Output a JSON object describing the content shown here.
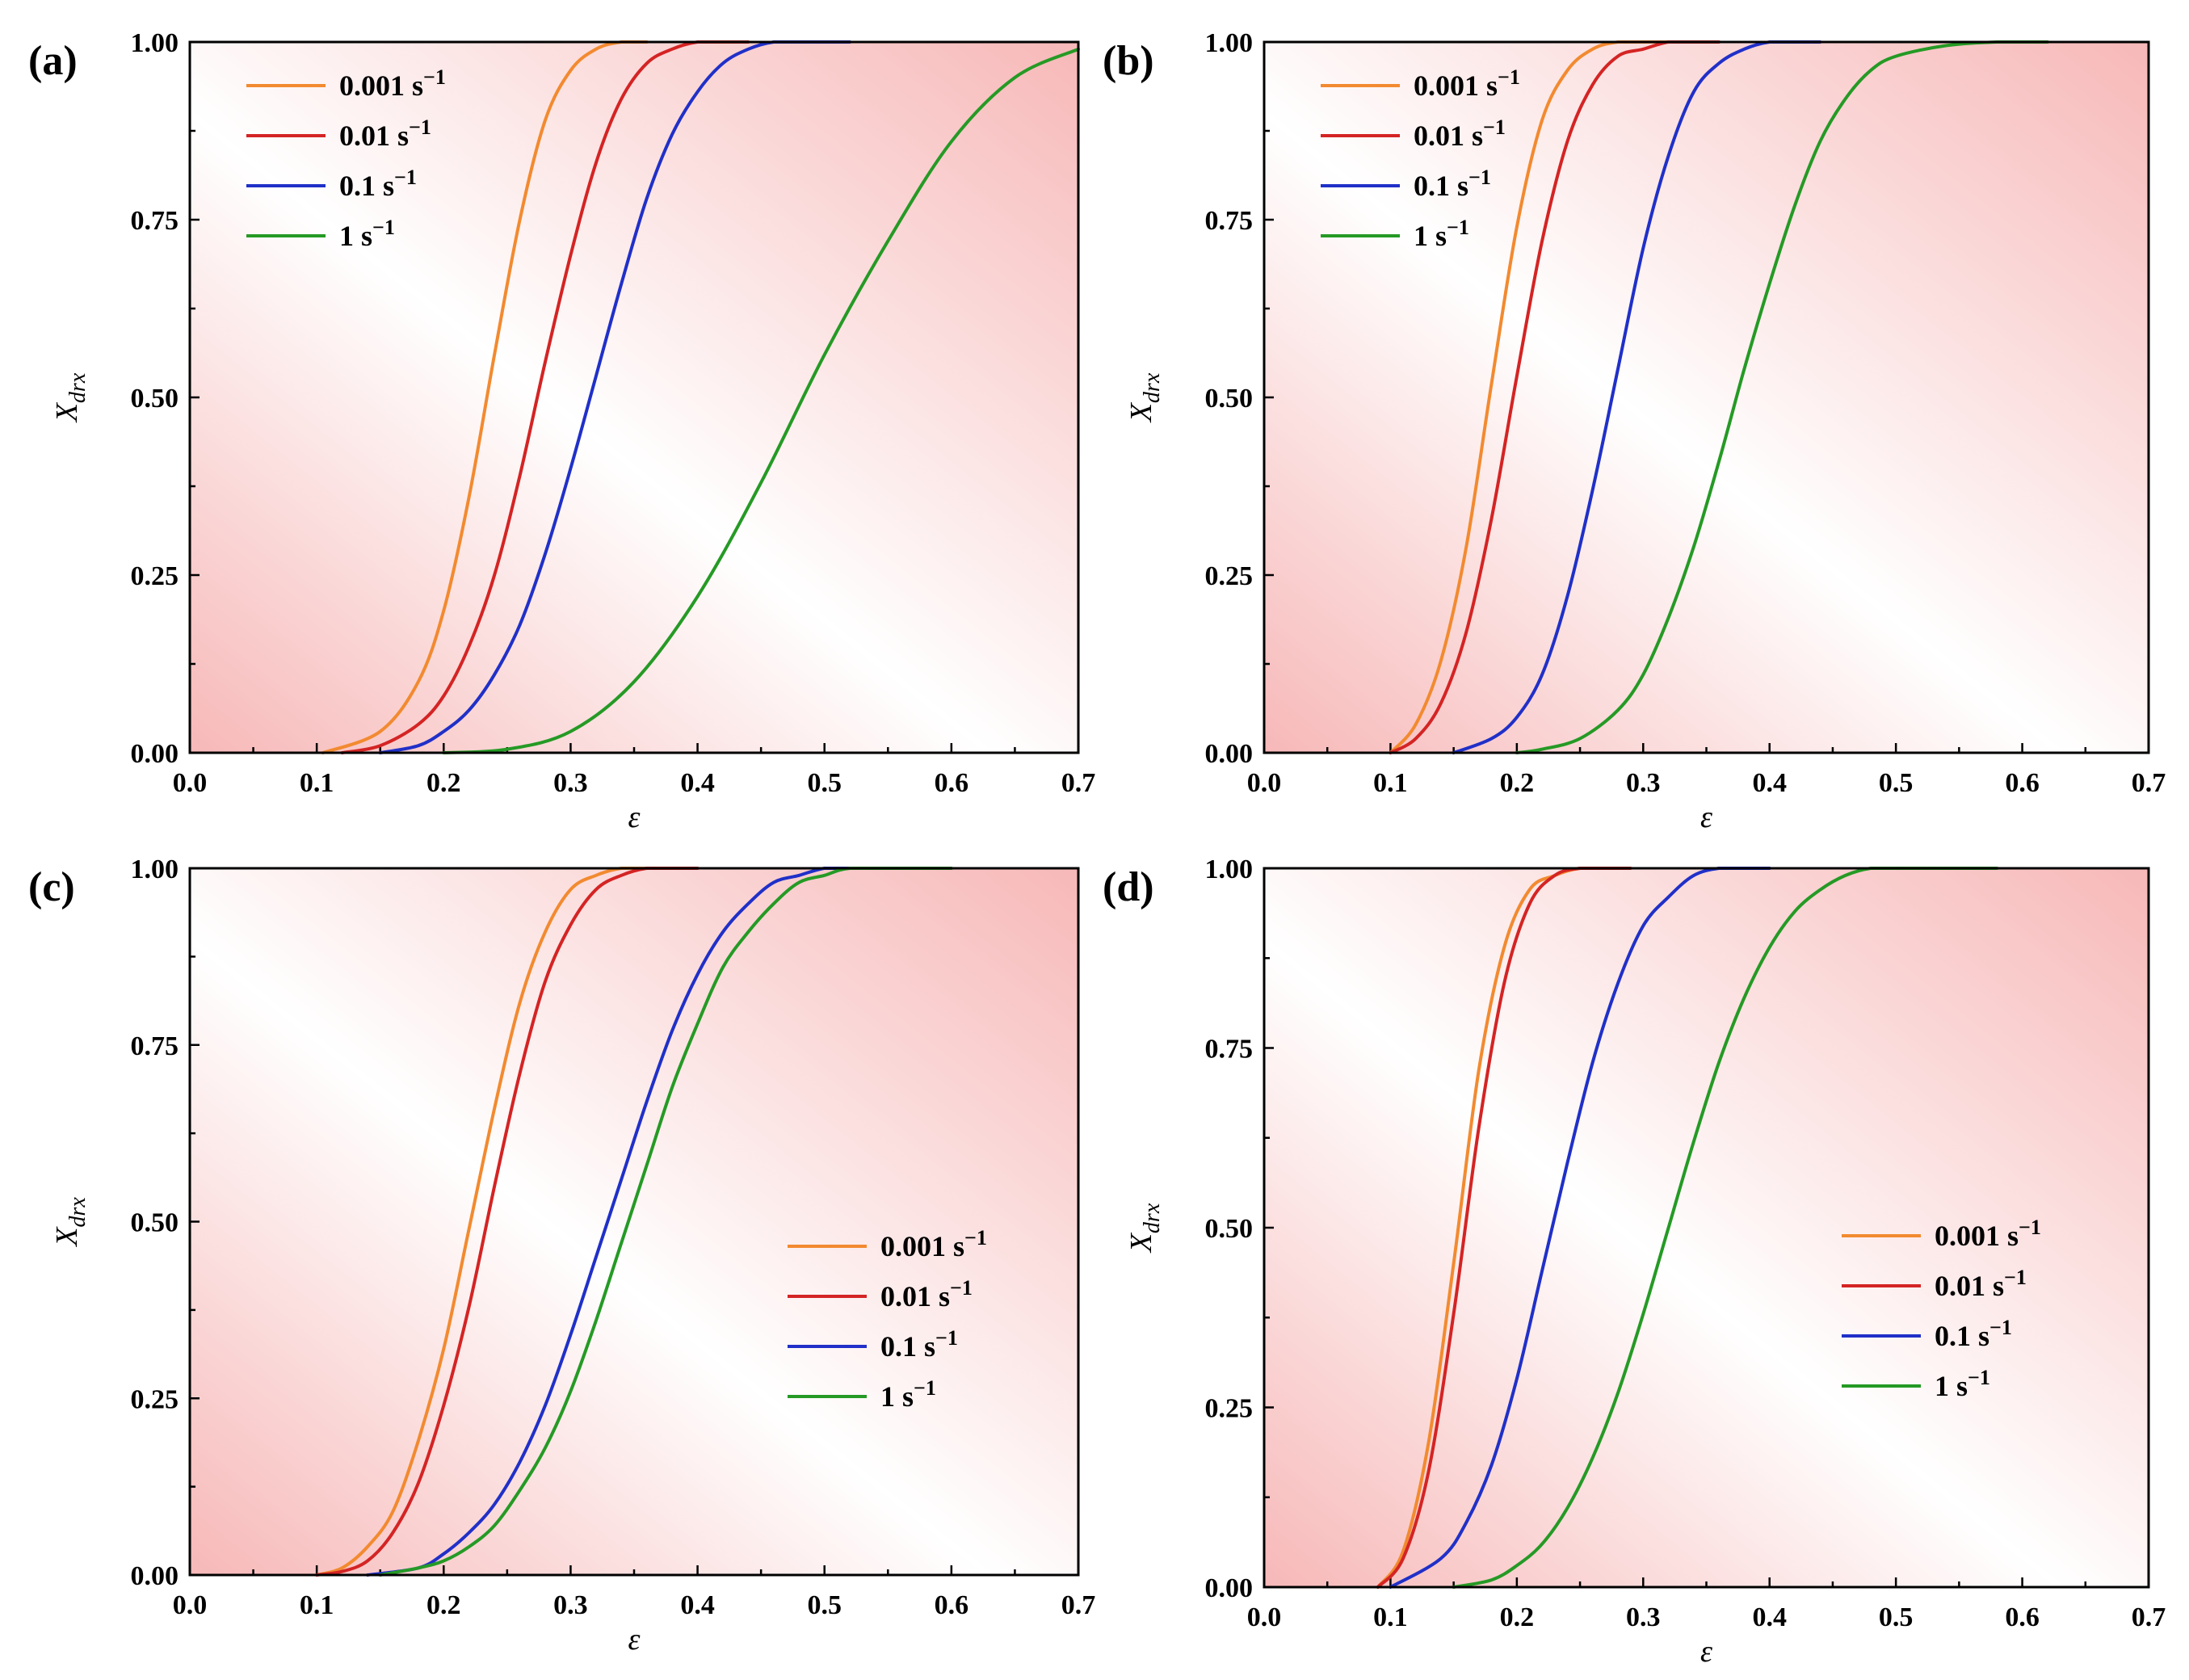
{
  "chart_data": [
    {
      "type": "line",
      "panel_label": "(a)",
      "xlabel": "ε",
      "ylabel": "X",
      "ylabel_sub": "drx",
      "xlim": [
        0,
        0.7
      ],
      "ylim": [
        0,
        1
      ],
      "xticks": [
        "0.0",
        "0.1",
        "0.2",
        "0.3",
        "0.4",
        "0.5",
        "0.6",
        "0.7"
      ],
      "yticks": [
        "0.00",
        "0.25",
        "0.50",
        "0.75",
        "1.00"
      ],
      "legend_position": "top-left",
      "series": [
        {
          "name": "0.001 s",
          "unit_exp": "−1",
          "color": "#f28a30",
          "x": [
            0.105,
            0.15,
            0.18,
            0.2,
            0.22,
            0.24,
            0.26,
            0.28,
            0.3,
            0.32,
            0.34,
            0.36
          ],
          "y": [
            0,
            0.03,
            0.1,
            0.2,
            0.36,
            0.56,
            0.75,
            0.89,
            0.96,
            0.99,
            1.0,
            1.0
          ]
        },
        {
          "name": "0.01 s",
          "unit_exp": "−1",
          "color": "#d42424",
          "x": [
            0.12,
            0.15,
            0.18,
            0.2,
            0.22,
            0.24,
            0.26,
            0.28,
            0.3,
            0.32,
            0.34,
            0.36,
            0.38,
            0.4,
            0.42,
            0.44
          ],
          "y": [
            0,
            0.01,
            0.04,
            0.08,
            0.15,
            0.25,
            0.39,
            0.55,
            0.7,
            0.83,
            0.92,
            0.97,
            0.99,
            1.0,
            1.0,
            1.0
          ]
        },
        {
          "name": "0.1 s",
          "unit_exp": "−1",
          "color": "#2030c8",
          "x": [
            0.15,
            0.18,
            0.2,
            0.22,
            0.24,
            0.26,
            0.28,
            0.3,
            0.32,
            0.34,
            0.36,
            0.38,
            0.4,
            0.42,
            0.44,
            0.46,
            0.48,
            0.5,
            0.52
          ],
          "y": [
            0,
            0.01,
            0.03,
            0.06,
            0.11,
            0.18,
            0.28,
            0.4,
            0.53,
            0.66,
            0.78,
            0.87,
            0.93,
            0.97,
            0.99,
            1.0,
            1.0,
            1.0,
            1.0
          ]
        },
        {
          "name": "1 s",
          "unit_exp": "−1",
          "color": "#259a25",
          "x": [
            0.2,
            0.25,
            0.3,
            0.35,
            0.4,
            0.45,
            0.5,
            0.55,
            0.6,
            0.65,
            0.7
          ],
          "y": [
            0,
            0.005,
            0.03,
            0.1,
            0.22,
            0.38,
            0.56,
            0.72,
            0.86,
            0.95,
            0.99
          ]
        }
      ]
    },
    {
      "type": "line",
      "panel_label": "(b)",
      "xlabel": "ε",
      "ylabel": "X",
      "ylabel_sub": "drx",
      "xlim": [
        0,
        0.7
      ],
      "ylim": [
        0,
        1
      ],
      "xticks": [
        "0.0",
        "0.1",
        "0.2",
        "0.3",
        "0.4",
        "0.5",
        "0.6",
        "0.7"
      ],
      "yticks": [
        "0.00",
        "0.25",
        "0.50",
        "0.75",
        "1.00"
      ],
      "legend_position": "top-left",
      "series": [
        {
          "name": "0.001 s",
          "unit_exp": "−1",
          "color": "#f28a30",
          "x": [
            0.1,
            0.12,
            0.14,
            0.16,
            0.18,
            0.2,
            0.22,
            0.24,
            0.26,
            0.28,
            0.3,
            0.32
          ],
          "y": [
            0,
            0.04,
            0.13,
            0.29,
            0.52,
            0.74,
            0.89,
            0.96,
            0.99,
            1.0,
            1.0,
            1.0
          ]
        },
        {
          "name": "0.01 s",
          "unit_exp": "−1",
          "color": "#d42424",
          "x": [
            0.1,
            0.12,
            0.14,
            0.16,
            0.18,
            0.2,
            0.22,
            0.24,
            0.26,
            0.28,
            0.3,
            0.32,
            0.34,
            0.36
          ],
          "y": [
            0,
            0.02,
            0.07,
            0.17,
            0.33,
            0.53,
            0.72,
            0.86,
            0.94,
            0.98,
            0.99,
            1.0,
            1.0,
            1.0
          ]
        },
        {
          "name": "0.1 s",
          "unit_exp": "−1",
          "color": "#2030c8",
          "x": [
            0.15,
            0.18,
            0.2,
            0.22,
            0.24,
            0.26,
            0.28,
            0.3,
            0.32,
            0.34,
            0.36,
            0.38,
            0.4,
            0.42,
            0.44
          ],
          "y": [
            0,
            0.02,
            0.05,
            0.11,
            0.22,
            0.37,
            0.54,
            0.71,
            0.84,
            0.93,
            0.97,
            0.99,
            1.0,
            1.0,
            1.0
          ]
        },
        {
          "name": "1 s",
          "unit_exp": "−1",
          "color": "#259a25",
          "x": [
            0.2,
            0.22,
            0.25,
            0.28,
            0.3,
            0.32,
            0.34,
            0.36,
            0.38,
            0.4,
            0.42,
            0.44,
            0.46,
            0.48,
            0.5,
            0.54,
            0.58,
            0.62
          ],
          "y": [
            0,
            0.005,
            0.02,
            0.06,
            0.11,
            0.19,
            0.29,
            0.41,
            0.54,
            0.66,
            0.77,
            0.86,
            0.92,
            0.96,
            0.98,
            0.995,
            1.0,
            1.0
          ]
        }
      ]
    },
    {
      "type": "line",
      "panel_label": "(c)",
      "xlabel": "ε",
      "ylabel": "X",
      "ylabel_sub": "drx",
      "xlim": [
        0,
        0.7
      ],
      "ylim": [
        0,
        1
      ],
      "xticks": [
        "0.0",
        "0.1",
        "0.2",
        "0.3",
        "0.4",
        "0.5",
        "0.6",
        "0.7"
      ],
      "yticks": [
        "0.00",
        "0.25",
        "0.50",
        "0.75",
        "1.00"
      ],
      "legend_position": "center-right",
      "series": [
        {
          "name": "0.001 s",
          "unit_exp": "−1",
          "color": "#f28a30",
          "x": [
            0.1,
            0.12,
            0.14,
            0.16,
            0.18,
            0.2,
            0.22,
            0.24,
            0.26,
            0.28,
            0.3,
            0.32,
            0.34,
            0.36
          ],
          "y": [
            0,
            0.01,
            0.04,
            0.09,
            0.19,
            0.32,
            0.49,
            0.66,
            0.81,
            0.91,
            0.97,
            0.99,
            1.0,
            1.0
          ]
        },
        {
          "name": "0.01 s",
          "unit_exp": "−1",
          "color": "#d42424",
          "x": [
            0.1,
            0.12,
            0.14,
            0.16,
            0.18,
            0.2,
            0.22,
            0.24,
            0.26,
            0.28,
            0.3,
            0.32,
            0.34,
            0.36,
            0.38,
            0.4
          ],
          "y": [
            0,
            0.005,
            0.02,
            0.06,
            0.13,
            0.24,
            0.38,
            0.55,
            0.71,
            0.84,
            0.92,
            0.97,
            0.99,
            1.0,
            1.0,
            1.0
          ]
        },
        {
          "name": "0.1 s",
          "unit_exp": "−1",
          "color": "#2030c8",
          "x": [
            0.14,
            0.18,
            0.2,
            0.22,
            0.24,
            0.26,
            0.28,
            0.3,
            0.32,
            0.34,
            0.36,
            0.38,
            0.4,
            0.42,
            0.44,
            0.46,
            0.48,
            0.5,
            0.52,
            0.56
          ],
          "y": [
            0,
            0.01,
            0.03,
            0.06,
            0.1,
            0.16,
            0.24,
            0.34,
            0.45,
            0.56,
            0.67,
            0.77,
            0.85,
            0.91,
            0.95,
            0.98,
            0.99,
            1.0,
            1.0,
            1.0
          ]
        },
        {
          "name": "1 s",
          "unit_exp": "−1",
          "color": "#259a25",
          "x": [
            0.15,
            0.18,
            0.2,
            0.22,
            0.24,
            0.26,
            0.28,
            0.3,
            0.32,
            0.34,
            0.36,
            0.38,
            0.4,
            0.42,
            0.44,
            0.46,
            0.48,
            0.5,
            0.52,
            0.56,
            0.6
          ],
          "y": [
            0,
            0.01,
            0.02,
            0.04,
            0.07,
            0.12,
            0.18,
            0.26,
            0.36,
            0.47,
            0.58,
            0.69,
            0.78,
            0.86,
            0.91,
            0.95,
            0.98,
            0.99,
            1.0,
            1.0,
            1.0
          ]
        }
      ]
    },
    {
      "type": "line",
      "panel_label": "(d)",
      "xlabel": "ε",
      "ylabel": "X",
      "ylabel_sub": "drx",
      "xlim": [
        0,
        0.7
      ],
      "ylim": [
        0,
        1
      ],
      "xticks": [
        "0.0",
        "0.1",
        "0.2",
        "0.3",
        "0.4",
        "0.5",
        "0.6",
        "0.7"
      ],
      "yticks": [
        "0.00",
        "0.25",
        "0.50",
        "0.75",
        "1.00"
      ],
      "legend_position": "center-right",
      "series": [
        {
          "name": "0.001 s",
          "unit_exp": "−1",
          "color": "#f28a30",
          "x": [
            0.09,
            0.11,
            0.13,
            0.15,
            0.17,
            0.19,
            0.21,
            0.23,
            0.25,
            0.27
          ],
          "y": [
            0,
            0.05,
            0.2,
            0.45,
            0.72,
            0.89,
            0.97,
            0.99,
            1.0,
            1.0
          ]
        },
        {
          "name": "0.01 s",
          "unit_exp": "−1",
          "color": "#d42424",
          "x": [
            0.09,
            0.11,
            0.13,
            0.15,
            0.17,
            0.19,
            0.21,
            0.23,
            0.25,
            0.27,
            0.29
          ],
          "y": [
            0,
            0.04,
            0.16,
            0.38,
            0.64,
            0.84,
            0.95,
            0.99,
            1.0,
            1.0,
            1.0
          ]
        },
        {
          "name": "0.1 s",
          "unit_exp": "−1",
          "color": "#2030c8",
          "x": [
            0.1,
            0.14,
            0.16,
            0.18,
            0.2,
            0.22,
            0.24,
            0.26,
            0.28,
            0.3,
            0.32,
            0.34,
            0.36,
            0.38,
            0.4
          ],
          "y": [
            0,
            0.04,
            0.09,
            0.17,
            0.29,
            0.44,
            0.59,
            0.73,
            0.84,
            0.92,
            0.96,
            0.99,
            1.0,
            1.0,
            1.0
          ]
        },
        {
          "name": "1 s",
          "unit_exp": "−1",
          "color": "#259a25",
          "x": [
            0.15,
            0.18,
            0.2,
            0.22,
            0.24,
            0.26,
            0.28,
            0.3,
            0.32,
            0.34,
            0.36,
            0.38,
            0.4,
            0.42,
            0.44,
            0.46,
            0.48,
            0.5,
            0.54,
            0.58
          ],
          "y": [
            0,
            0.01,
            0.03,
            0.06,
            0.11,
            0.18,
            0.27,
            0.38,
            0.5,
            0.62,
            0.73,
            0.82,
            0.89,
            0.94,
            0.97,
            0.99,
            1.0,
            1.0,
            1.0,
            1.0
          ]
        }
      ]
    }
  ]
}
